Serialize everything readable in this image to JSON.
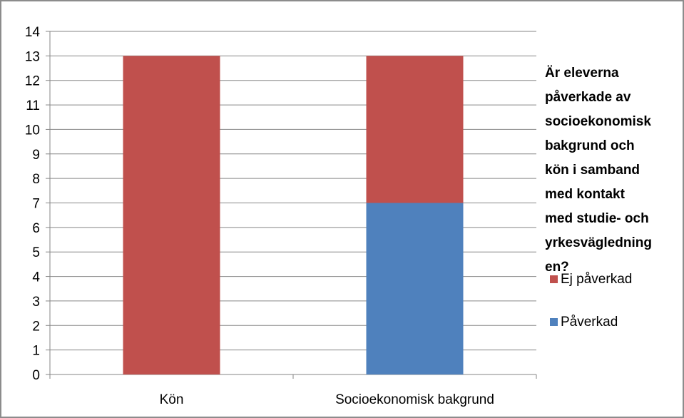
{
  "chart_data": {
    "type": "bar",
    "stacked": true,
    "title_lines": [
      "Är eleverna",
      "påverkade av",
      "socioekonomisk",
      "bakgrund och",
      "kön i samband",
      "med kontakt",
      "med studie- och",
      "yrkesvägledning",
      "en?"
    ],
    "categories": [
      "Kön",
      "Socioekonomisk bakgrund"
    ],
    "series": [
      {
        "name": "Påverkad",
        "values": [
          0,
          7
        ],
        "color": "#4F81BD"
      },
      {
        "name": "Ej påverkad",
        "values": [
          13,
          6
        ],
        "color": "#C0504D"
      }
    ],
    "legend_order": [
      "Ej påverkad",
      "Påverkad"
    ],
    "ylim": [
      0,
      14
    ],
    "yticks": [
      "0",
      "1",
      "2",
      "3",
      "4",
      "5",
      "6",
      "7",
      "8",
      "9",
      "10",
      "11",
      "12",
      "13",
      "14"
    ],
    "grid": true,
    "legend_position": "right"
  }
}
